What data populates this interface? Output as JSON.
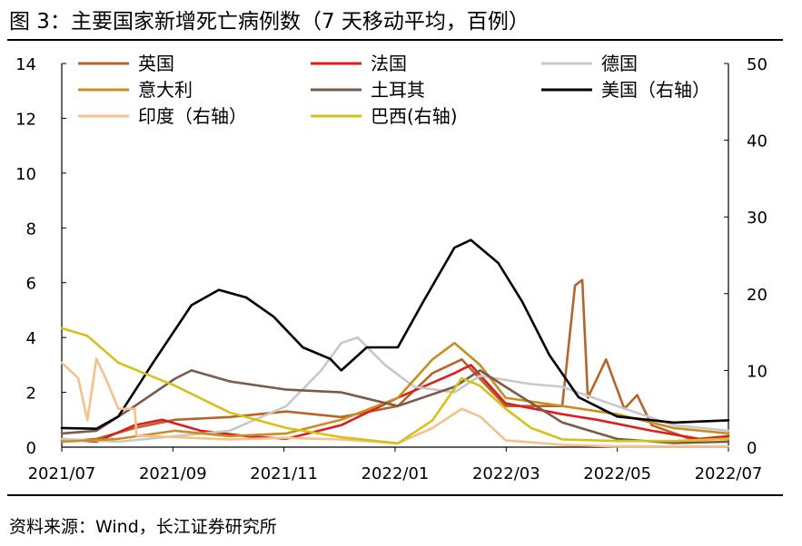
{
  "title": "图 3：主要国家新增死亡病例数（7 天移动平均，百例）",
  "source": "资料来源：Wind，长江证券研究所",
  "chart_data": {
    "type": "line",
    "title": "主要国家新增死亡病例数（7 天移动平均，百例）",
    "x_tick_labels": [
      "2021/07",
      "2021/09",
      "2021/11",
      "2022/01",
      "2022/03",
      "2022/05",
      "2022/07"
    ],
    "x_range": [
      "2021-07-01",
      "2022-07-01"
    ],
    "y_left": {
      "min": 0,
      "max": 14,
      "ticks": [
        0,
        2,
        4,
        6,
        8,
        10,
        12,
        14
      ]
    },
    "y_right": {
      "min": 0,
      "max": 50,
      "ticks": [
        0,
        10,
        20,
        30,
        40,
        50
      ]
    },
    "legend_position": "top",
    "series": [
      {
        "name": "英国",
        "color": "#b5652a",
        "axis": "left",
        "points": [
          [
            "2021-07-01",
            0.2
          ],
          [
            "2021-07-20",
            0.3
          ],
          [
            "2021-08-10",
            0.7
          ],
          [
            "2021-09-01",
            1.0
          ],
          [
            "2021-10-01",
            1.1
          ],
          [
            "2021-11-01",
            1.3
          ],
          [
            "2021-12-01",
            1.1
          ],
          [
            "2022-01-01",
            1.5
          ],
          [
            "2022-01-20",
            2.7
          ],
          [
            "2022-02-05",
            3.2
          ],
          [
            "2022-03-01",
            1.5
          ],
          [
            "2022-04-01",
            1.5
          ],
          [
            "2022-04-08",
            5.9
          ],
          [
            "2022-04-12",
            6.1
          ],
          [
            "2022-04-15",
            1.8
          ],
          [
            "2022-04-25",
            3.2
          ],
          [
            "2022-05-05",
            1.4
          ],
          [
            "2022-05-12",
            1.9
          ],
          [
            "2022-05-20",
            0.8
          ],
          [
            "2022-06-10",
            0.3
          ],
          [
            "2022-07-01",
            0.3
          ]
        ]
      },
      {
        "name": "法国",
        "color": "#dd1e1e",
        "axis": "left",
        "points": [
          [
            "2021-07-01",
            0.3
          ],
          [
            "2021-07-20",
            0.2
          ],
          [
            "2021-08-10",
            0.8
          ],
          [
            "2021-08-25",
            1.0
          ],
          [
            "2021-09-15",
            0.6
          ],
          [
            "2021-10-10",
            0.4
          ],
          [
            "2021-11-01",
            0.3
          ],
          [
            "2021-12-01",
            0.8
          ],
          [
            "2022-01-01",
            1.8
          ],
          [
            "2022-02-01",
            2.7
          ],
          [
            "2022-02-10",
            3.0
          ],
          [
            "2022-03-01",
            1.6
          ],
          [
            "2022-04-01",
            1.2
          ],
          [
            "2022-04-20",
            1.0
          ],
          [
            "2022-05-20",
            0.6
          ],
          [
            "2022-06-15",
            0.3
          ],
          [
            "2022-07-01",
            0.4
          ]
        ]
      },
      {
        "name": "德国",
        "color": "#c8c8c8",
        "axis": "left",
        "points": [
          [
            "2021-07-01",
            0.3
          ],
          [
            "2021-08-01",
            0.2
          ],
          [
            "2021-09-01",
            0.4
          ],
          [
            "2021-10-01",
            0.6
          ],
          [
            "2021-11-01",
            1.5
          ],
          [
            "2021-11-20",
            2.8
          ],
          [
            "2021-12-01",
            3.8
          ],
          [
            "2021-12-10",
            4.0
          ],
          [
            "2021-12-25",
            3.0
          ],
          [
            "2022-01-10",
            2.2
          ],
          [
            "2022-02-01",
            2.0
          ],
          [
            "2022-02-15",
            2.6
          ],
          [
            "2022-03-15",
            2.3
          ],
          [
            "2022-04-01",
            2.2
          ],
          [
            "2022-05-01",
            1.5
          ],
          [
            "2022-06-01",
            0.8
          ],
          [
            "2022-07-01",
            0.6
          ]
        ]
      },
      {
        "name": "意大利",
        "color": "#c88f1e",
        "axis": "left",
        "points": [
          [
            "2021-07-01",
            0.2
          ],
          [
            "2021-08-01",
            0.3
          ],
          [
            "2021-09-01",
            0.6
          ],
          [
            "2021-10-01",
            0.4
          ],
          [
            "2021-11-01",
            0.5
          ],
          [
            "2021-12-01",
            1.0
          ],
          [
            "2022-01-01",
            1.8
          ],
          [
            "2022-01-20",
            3.2
          ],
          [
            "2022-02-01",
            3.8
          ],
          [
            "2022-02-15",
            3.0
          ],
          [
            "2022-03-01",
            1.8
          ],
          [
            "2022-04-01",
            1.5
          ],
          [
            "2022-05-01",
            1.2
          ],
          [
            "2022-06-01",
            0.7
          ],
          [
            "2022-07-01",
            0.5
          ]
        ]
      },
      {
        "name": "土耳其",
        "color": "#7b5a4a",
        "axis": "left",
        "points": [
          [
            "2021-07-01",
            0.5
          ],
          [
            "2021-07-20",
            0.6
          ],
          [
            "2021-08-10",
            1.5
          ],
          [
            "2021-09-01",
            2.5
          ],
          [
            "2021-09-10",
            2.8
          ],
          [
            "2021-10-01",
            2.4
          ],
          [
            "2021-11-01",
            2.1
          ],
          [
            "2021-12-01",
            2.0
          ],
          [
            "2022-01-01",
            1.5
          ],
          [
            "2022-02-01",
            2.2
          ],
          [
            "2022-02-15",
            2.8
          ],
          [
            "2022-03-01",
            2.2
          ],
          [
            "2022-04-01",
            0.9
          ],
          [
            "2022-05-01",
            0.3
          ],
          [
            "2022-06-01",
            0.15
          ],
          [
            "2022-07-01",
            0.2
          ]
        ]
      },
      {
        "name": "美国（右轴）",
        "color": "#000000",
        "axis": "right",
        "points": [
          [
            "2021-07-01",
            2.5
          ],
          [
            "2021-07-20",
            2.4
          ],
          [
            "2021-08-01",
            4.0
          ],
          [
            "2021-08-20",
            11.0
          ],
          [
            "2021-09-10",
            18.5
          ],
          [
            "2021-09-25",
            20.5
          ],
          [
            "2021-10-10",
            19.5
          ],
          [
            "2021-10-25",
            17.0
          ],
          [
            "2021-11-10",
            13.0
          ],
          [
            "2021-11-25",
            11.5
          ],
          [
            "2021-12-01",
            10.0
          ],
          [
            "2021-12-15",
            13.0
          ],
          [
            "2022-01-01",
            13.0
          ],
          [
            "2022-01-15",
            19.0
          ],
          [
            "2022-02-01",
            26.0
          ],
          [
            "2022-02-10",
            27.0
          ],
          [
            "2022-02-25",
            24.0
          ],
          [
            "2022-03-10",
            19.0
          ],
          [
            "2022-03-25",
            12.0
          ],
          [
            "2022-04-10",
            6.5
          ],
          [
            "2022-05-01",
            4.0
          ],
          [
            "2022-06-01",
            3.2
          ],
          [
            "2022-07-01",
            3.5
          ]
        ]
      },
      {
        "name": "印度（右轴）",
        "color": "#f6c08c",
        "axis": "right",
        "points": [
          [
            "2021-07-01",
            11.0
          ],
          [
            "2021-07-10",
            9.0
          ],
          [
            "2021-07-15",
            3.5
          ],
          [
            "2021-07-20",
            11.5
          ],
          [
            "2021-07-25",
            9.0
          ],
          [
            "2021-08-01",
            5.0
          ],
          [
            "2021-08-10",
            5.0
          ],
          [
            "2021-08-11",
            1.5
          ],
          [
            "2021-09-01",
            1.3
          ],
          [
            "2021-10-01",
            1.0
          ],
          [
            "2021-11-01",
            1.2
          ],
          [
            "2021-12-01",
            1.0
          ],
          [
            "2022-01-01",
            0.5
          ],
          [
            "2022-01-20",
            2.5
          ],
          [
            "2022-02-05",
            5.0
          ],
          [
            "2022-02-15",
            4.0
          ],
          [
            "2022-03-01",
            0.9
          ],
          [
            "2022-04-01",
            0.3
          ],
          [
            "2022-05-01",
            0.1
          ],
          [
            "2022-07-01",
            0.1
          ]
        ]
      },
      {
        "name": "巴西(右轴)",
        "color": "#d4c21a",
        "axis": "right",
        "points": [
          [
            "2021-07-01",
            15.5
          ],
          [
            "2021-07-15",
            14.5
          ],
          [
            "2021-08-01",
            11.0
          ],
          [
            "2021-09-01",
            8.0
          ],
          [
            "2021-10-01",
            4.5
          ],
          [
            "2021-11-01",
            2.5
          ],
          [
            "2021-12-01",
            1.3
          ],
          [
            "2022-01-01",
            0.5
          ],
          [
            "2022-01-20",
            3.5
          ],
          [
            "2022-02-05",
            9.0
          ],
          [
            "2022-02-15",
            8.0
          ],
          [
            "2022-03-01",
            5.0
          ],
          [
            "2022-03-15",
            2.5
          ],
          [
            "2022-04-01",
            1.0
          ],
          [
            "2022-05-01",
            0.8
          ],
          [
            "2022-06-01",
            0.8
          ],
          [
            "2022-07-01",
            1.1
          ]
        ]
      }
    ]
  }
}
